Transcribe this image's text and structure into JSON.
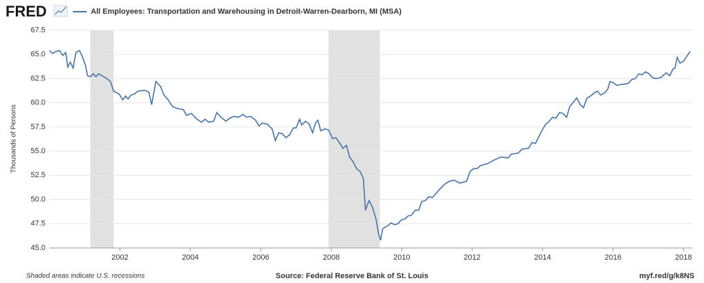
{
  "chart_data": {
    "type": "line",
    "logo": "FRED",
    "ylabel": "Thousands of Persons",
    "note": "Shaded areas indicate U.S. recessions",
    "source": "Source: Federal Reserve Bank of St. Louis",
    "link": "myf.red/g/k8NS",
    "recessions": [
      [
        2001.16,
        2001.82
      ],
      [
        2007.92,
        2009.38
      ]
    ],
    "xlim": [
      2000,
      2018.25
    ],
    "xticks": [
      2002,
      2004,
      2006,
      2008,
      2010,
      2012,
      2014,
      2016,
      2018
    ],
    "ylim": [
      45,
      67.5
    ],
    "yticks": [
      {
        "value": 45,
        "label": "45.0"
      },
      47.5,
      {
        "value": 50,
        "label": "50.0"
      },
      52.5,
      {
        "value": 55,
        "label": "55.0"
      },
      57.5,
      {
        "value": 60,
        "label": "60.0"
      },
      62.5,
      {
        "value": 65,
        "label": "65.0"
      },
      67.5
    ],
    "grid": true,
    "x": [
      2000.0,
      2000.09,
      2000.18,
      2000.28,
      2000.38,
      2000.46,
      2000.52,
      2000.59,
      2000.67,
      2000.75,
      2000.85,
      2000.93,
      2001.02,
      2001.08,
      2001.16,
      2001.24,
      2001.32,
      2001.39,
      2001.49,
      2001.63,
      2001.73,
      2001.82,
      2001.98,
      2002.08,
      2002.16,
      2002.23,
      2002.31,
      2002.41,
      2002.51,
      2002.7,
      2002.82,
      2002.9,
      2003.02,
      2003.15,
      2003.25,
      2003.37,
      2003.5,
      2003.64,
      2003.8,
      2003.89,
      2004.03,
      2004.19,
      2004.32,
      2004.42,
      2004.52,
      2004.66,
      2004.75,
      2004.87,
      2005.01,
      2005.11,
      2005.24,
      2005.36,
      2005.5,
      2005.59,
      2005.71,
      2005.85,
      2005.95,
      2006.04,
      2006.18,
      2006.32,
      2006.41,
      2006.51,
      2006.61,
      2006.71,
      2006.82,
      2006.92,
      2007.0,
      2007.1,
      2007.16,
      2007.27,
      2007.37,
      2007.47,
      2007.55,
      2007.62,
      2007.7,
      2007.82,
      2007.92,
      2008.04,
      2008.13,
      2008.23,
      2008.33,
      2008.43,
      2008.52,
      2008.62,
      2008.72,
      2008.82,
      2008.91,
      2008.97,
      2009.07,
      2009.17,
      2009.27,
      2009.34,
      2009.4,
      2009.46,
      2009.6,
      2009.7,
      2009.79,
      2009.89,
      2009.99,
      2010.09,
      2010.18,
      2010.28,
      2010.38,
      2010.48,
      2010.57,
      2010.67,
      2010.77,
      2010.87,
      2011.06,
      2011.22,
      2011.36,
      2011.49,
      2011.65,
      2011.84,
      2011.94,
      2012.04,
      2012.14,
      2012.23,
      2012.43,
      2012.63,
      2012.82,
      2013.02,
      2013.11,
      2013.31,
      2013.41,
      2013.6,
      2013.7,
      2013.8,
      2013.89,
      2013.99,
      2014.09,
      2014.19,
      2014.28,
      2014.38,
      2014.48,
      2014.58,
      2014.68,
      2014.77,
      2014.97,
      2015.07,
      2015.16,
      2015.26,
      2015.36,
      2015.46,
      2015.55,
      2015.65,
      2015.75,
      2015.85,
      2015.91,
      2016.0,
      2016.1,
      2016.24,
      2016.43,
      2016.53,
      2016.63,
      2016.73,
      2016.82,
      2016.92,
      2017.02,
      2017.12,
      2017.21,
      2017.35,
      2017.51,
      2017.61,
      2017.7,
      2017.76,
      2017.82,
      2017.9,
      2018.0,
      2018.09,
      2018.19
    ],
    "series": [
      {
        "name": "All Employees: Transportation and Warehousing in Detroit-Warren-Dearborn, MI (MSA)",
        "color": "#4572a7",
        "values": [
          65.4,
          65.1,
          65.3,
          65.4,
          64.9,
          65.2,
          63.7,
          64.2,
          63.6,
          65.2,
          65.4,
          64.8,
          63.9,
          62.8,
          62.7,
          63.0,
          62.7,
          63.0,
          62.8,
          62.5,
          62.2,
          61.2,
          60.9,
          60.3,
          60.7,
          60.4,
          60.8,
          60.9,
          61.2,
          61.3,
          61.1,
          59.8,
          62.2,
          61.7,
          60.8,
          60.3,
          59.6,
          59.4,
          59.3,
          58.7,
          58.9,
          58.3,
          58.0,
          58.3,
          58.0,
          58.1,
          59.0,
          58.5,
          58.1,
          58.4,
          58.6,
          58.5,
          58.8,
          58.5,
          58.6,
          58.2,
          57.6,
          57.9,
          57.8,
          57.3,
          56.1,
          56.9,
          56.8,
          56.4,
          56.7,
          57.4,
          57.4,
          58.3,
          57.7,
          58.1,
          57.8,
          56.9,
          57.9,
          58.2,
          57.1,
          57.3,
          57.2,
          56.3,
          56.4,
          55.9,
          55.3,
          55.6,
          54.4,
          53.9,
          53.2,
          52.9,
          52.2,
          48.9,
          49.9,
          49.2,
          48.0,
          46.5,
          45.8,
          47.0,
          47.3,
          47.6,
          47.4,
          47.5,
          47.9,
          48.0,
          48.3,
          48.4,
          48.9,
          48.9,
          49.8,
          49.9,
          50.3,
          50.2,
          51.0,
          51.6,
          51.9,
          52.0,
          51.7,
          51.9,
          52.9,
          53.2,
          53.2,
          53.5,
          53.7,
          54.1,
          54.4,
          54.3,
          54.7,
          54.8,
          55.2,
          55.3,
          55.9,
          55.8,
          56.5,
          57.2,
          57.8,
          58.1,
          58.5,
          58.4,
          59.0,
          58.9,
          58.5,
          59.6,
          60.5,
          59.8,
          59.5,
          60.5,
          60.7,
          61.0,
          61.2,
          60.8,
          61.0,
          61.4,
          62.2,
          62.1,
          61.8,
          61.9,
          62.0,
          62.4,
          62.5,
          63.0,
          62.9,
          63.2,
          63.0,
          62.6,
          62.5,
          62.6,
          63.1,
          62.8,
          63.5,
          63.6,
          64.7,
          64.1,
          64.3,
          64.8,
          65.3
        ]
      }
    ]
  }
}
